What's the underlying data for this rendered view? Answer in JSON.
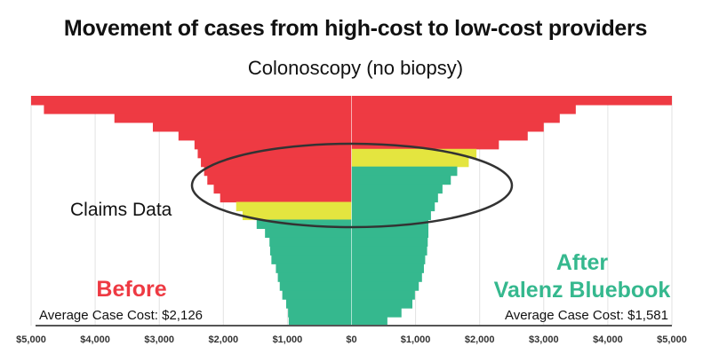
{
  "title": "Movement of cases from high-cost to low-cost providers",
  "subtitle": "Colonoscopy (no biopsy)",
  "annotations": {
    "claims_label": "Claims Data",
    "before_label": "Before",
    "before_avg": "Average Case Cost:  $2,126",
    "after_label_1": "After",
    "after_label_2": "Valenz Bluebook",
    "after_avg": "Average Case Cost:  $1,581"
  },
  "colors": {
    "high_cost": "#ee3a43",
    "mid_cost": "#e4e53f",
    "low_cost": "#35b88e",
    "before_text": "#ee3a43",
    "after_text": "#35b88e"
  },
  "chart_data": {
    "type": "bar",
    "orientation": "horizontal-butterfly",
    "xlabel": "",
    "ylabel": "",
    "xlim": [
      -5000,
      5000
    ],
    "x_tick_labels": [
      "$5,000",
      "$4,000",
      "$3,000",
      "$2,000",
      "$1,000",
      "$0",
      "$1,000",
      "$2,000",
      "$3,000",
      "$4,000",
      "$5,000"
    ],
    "grid": true,
    "series": [
      {
        "name": "Before",
        "side": "left",
        "values": [
          5000,
          4800,
          3700,
          3100,
          2700,
          2450,
          2400,
          2350,
          2300,
          2250,
          2150,
          2050,
          1800,
          1700,
          1480,
          1350,
          1280,
          1270,
          1250,
          1180,
          1150,
          1120,
          1080,
          1020,
          990,
          980
        ],
        "tiers": [
          "high",
          "high",
          "high",
          "high",
          "high",
          "high",
          "high",
          "high",
          "high",
          "high",
          "high",
          "high",
          "mid",
          "mid",
          "low",
          "low",
          "low",
          "low",
          "low",
          "low",
          "low",
          "low",
          "low",
          "low",
          "low",
          "low"
        ]
      },
      {
        "name": "After Valenz Bluebook",
        "side": "right",
        "values": [
          5000,
          3500,
          3250,
          3000,
          2750,
          2300,
          1950,
          1830,
          1650,
          1550,
          1420,
          1350,
          1300,
          1240,
          1200,
          1200,
          1190,
          1180,
          1150,
          1130,
          1100,
          1050,
          990,
          950,
          780,
          560
        ],
        "tiers": [
          "high",
          "high",
          "high",
          "high",
          "high",
          "high",
          "mid",
          "mid",
          "low",
          "low",
          "low",
          "low",
          "low",
          "low",
          "low",
          "low",
          "low",
          "low",
          "low",
          "low",
          "low",
          "low",
          "low",
          "low",
          "low",
          "low"
        ]
      }
    ]
  }
}
